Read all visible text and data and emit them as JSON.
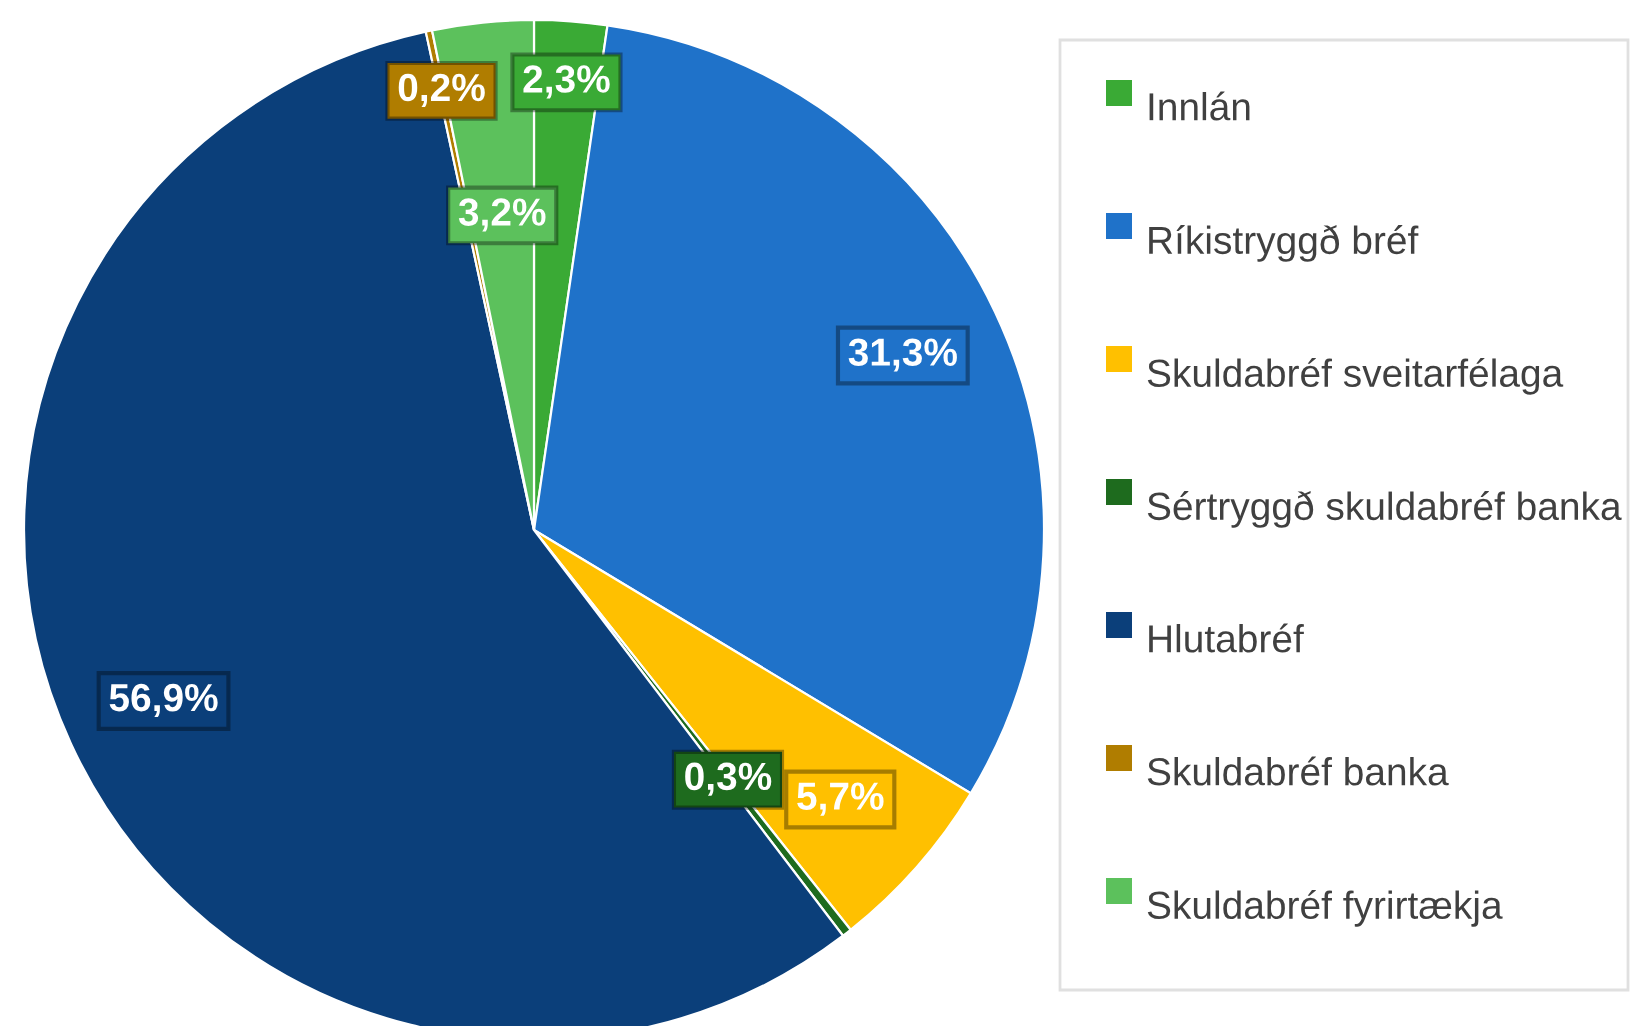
{
  "chart_data": {
    "type": "pie",
    "categories": [
      "Innlán",
      "Ríkistryggð bréf",
      "Skuldabréf sveitarfélaga",
      "Sértryggð skuldabréf banka",
      "Hlutabréf",
      "Skuldabréf banka",
      "Skuldabréf fyrirtækja"
    ],
    "values": [
      2.3,
      31.3,
      5.7,
      0.3,
      56.9,
      0.2,
      3.2
    ],
    "colors": [
      "#3aaa35",
      "#1f72c9",
      "#ffc000",
      "#1e6b1e",
      "#0b3f7a",
      "#b07d00",
      "#5cc15c"
    ],
    "value_labels": [
      "2,3%",
      "31,3%",
      "5,7%",
      "0,3%",
      "56,9%",
      "0,2%",
      "3,2%"
    ],
    "legend": "right"
  }
}
